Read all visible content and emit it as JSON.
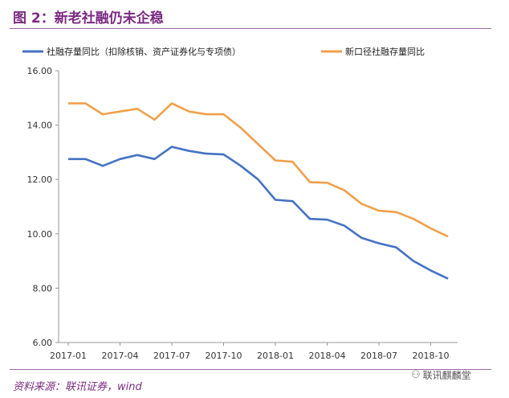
{
  "figure": {
    "title": "图 2：新老社融仍未企稳",
    "source": "资料来源：联讯证券，wind",
    "watermark": "联讯麒麟堂",
    "watermark_icon": "wechat-icon"
  },
  "chart_data": {
    "type": "line",
    "title": "",
    "xlabel": "",
    "ylabel": "",
    "ylim": [
      6.0,
      16.0
    ],
    "yticks": [
      "6.00",
      "8.00",
      "10.00",
      "12.00",
      "14.00",
      "16.00"
    ],
    "x_tick_labels": [
      "2017-01",
      "2017-04",
      "2017-07",
      "2017-10",
      "2018-01",
      "2018-04",
      "2018-07",
      "2018-10"
    ],
    "x": [
      "2017-01",
      "2017-02",
      "2017-03",
      "2017-04",
      "2017-05",
      "2017-06",
      "2017-07",
      "2017-08",
      "2017-09",
      "2017-10",
      "2017-11",
      "2017-12",
      "2018-01",
      "2018-02",
      "2018-03",
      "2018-04",
      "2018-05",
      "2018-06",
      "2018-07",
      "2018-08",
      "2018-09",
      "2018-10",
      "2018-11"
    ],
    "legend_position": "top",
    "grid": false,
    "series": [
      {
        "name": "社融存量同比（扣除核销、资产证券化与专项债）",
        "color": "#4472c4",
        "values": [
          12.75,
          12.75,
          12.5,
          12.75,
          12.9,
          12.75,
          13.2,
          13.05,
          12.95,
          12.92,
          12.5,
          12.0,
          11.25,
          11.2,
          10.55,
          10.52,
          10.3,
          9.85,
          9.65,
          9.5,
          9.0,
          8.65,
          8.35
        ]
      },
      {
        "name": "新口径社融存量同比",
        "color": "#f0a04a",
        "values": [
          14.8,
          14.8,
          14.4,
          14.5,
          14.6,
          14.2,
          14.8,
          14.5,
          14.4,
          14.4,
          13.9,
          13.3,
          12.7,
          12.65,
          11.9,
          11.88,
          11.6,
          11.1,
          10.85,
          10.8,
          10.55,
          10.2,
          9.9
        ]
      }
    ]
  }
}
